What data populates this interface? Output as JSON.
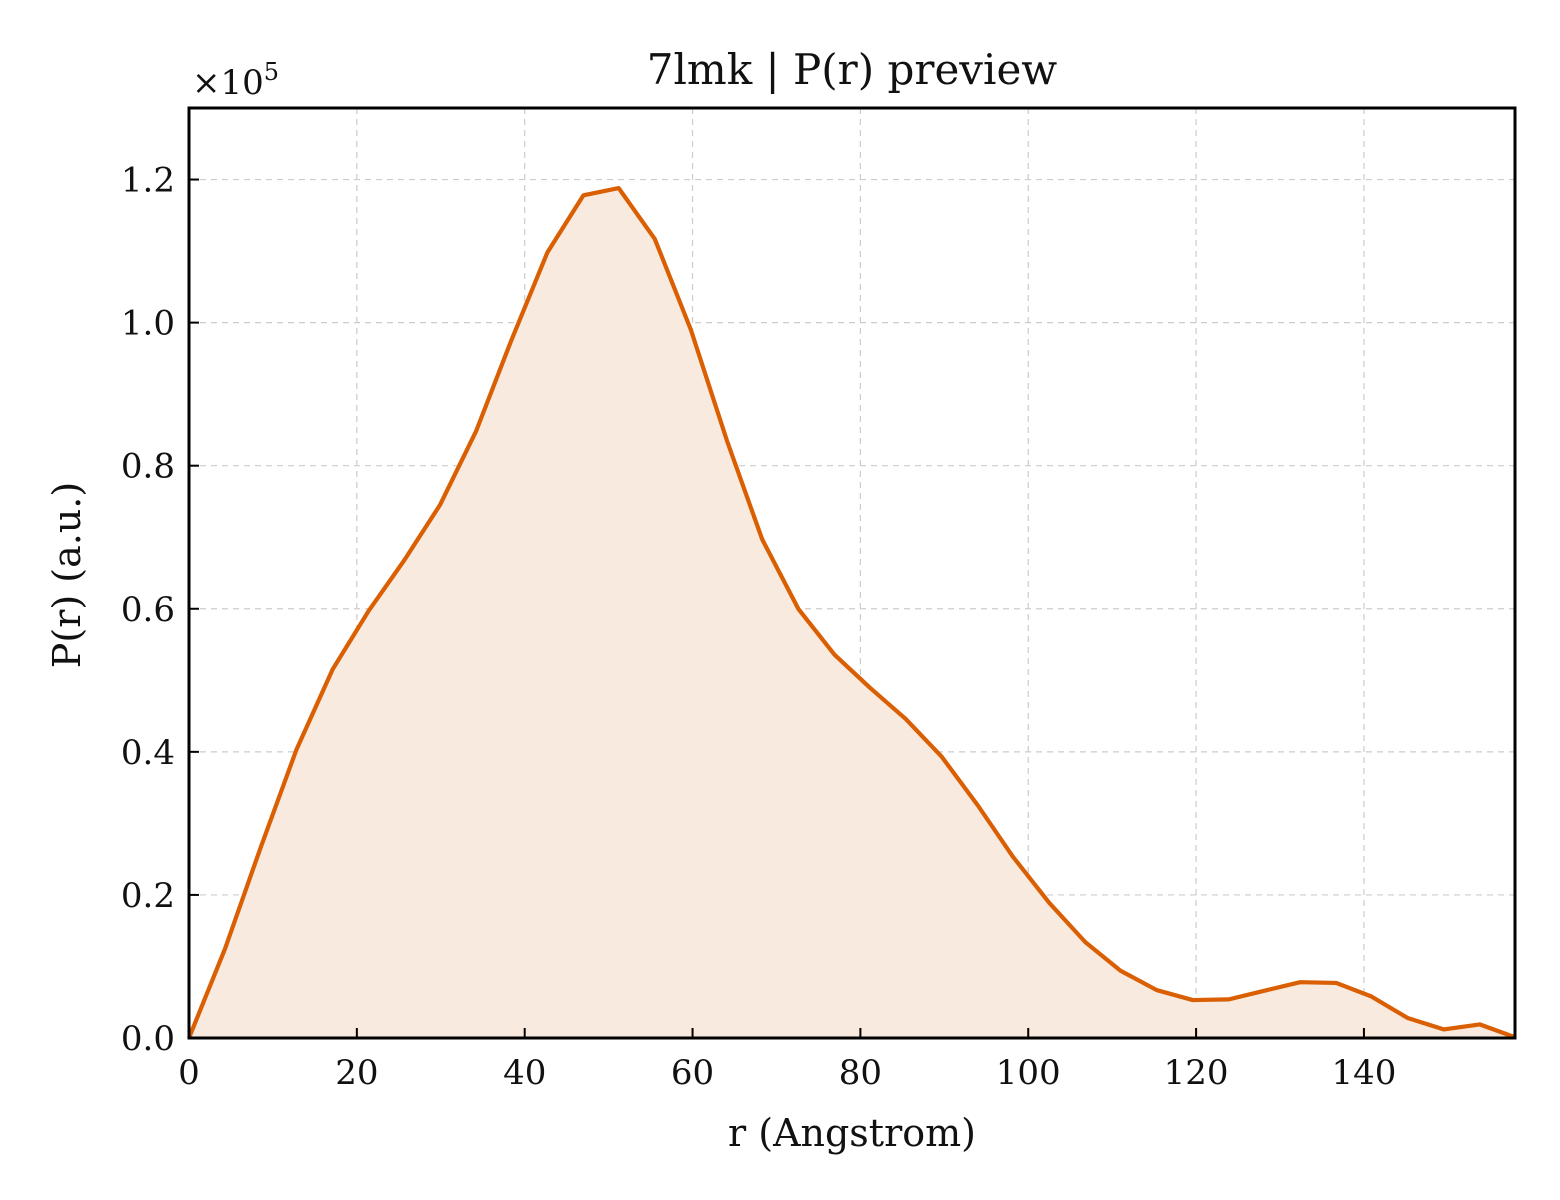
{
  "chart_data": {
    "type": "area",
    "title": "7lmk | P(r) preview",
    "xlabel": "r (Angstrom)",
    "ylabel": "P(r) (a.u.)",
    "y_multiplier_label": "×10",
    "y_multiplier_exponent": "5",
    "xlim": [
      0,
      158
    ],
    "ylim": [
      0,
      1.3
    ],
    "x_ticks": [
      0,
      20,
      40,
      60,
      80,
      100,
      120,
      140
    ],
    "x_tick_labels": [
      "0",
      "20",
      "40",
      "60",
      "80",
      "100",
      "120",
      "140"
    ],
    "y_ticks": [
      0.0,
      0.2,
      0.4,
      0.6,
      0.8,
      1.0,
      1.2
    ],
    "y_tick_labels": [
      "0.0",
      "0.2",
      "0.4",
      "0.6",
      "0.8",
      "1.0",
      "1.2"
    ],
    "grid": true,
    "colors": {
      "line": "#d95f02",
      "fill": "#f9eadf"
    },
    "series": [
      {
        "x": [
          0,
          4.3,
          8.5,
          12.8,
          17.1,
          21.4,
          25.6,
          29.9,
          34.2,
          38.4,
          42.7,
          47.0,
          51.2,
          55.5,
          59.8,
          64.1,
          68.3,
          72.6,
          76.9,
          81.1,
          85.4,
          89.7,
          94.0,
          98.2,
          102.5,
          106.8,
          111.0,
          115.3,
          119.6,
          123.9,
          128.1,
          132.4,
          136.7,
          140.9,
          145.2,
          149.5,
          153.8,
          158.0
        ],
        "values": [
          0.0,
          0.125,
          0.265,
          0.403,
          0.515,
          0.597,
          0.667,
          0.745,
          0.848,
          0.975,
          1.098,
          1.178,
          1.188,
          1.117,
          0.99,
          0.835,
          0.697,
          0.6,
          0.536,
          0.49,
          0.446,
          0.393,
          0.325,
          0.253,
          0.189,
          0.134,
          0.094,
          0.067,
          0.053,
          0.054,
          0.066,
          0.078,
          0.077,
          0.058,
          0.028,
          0.012,
          0.019,
          0.001
        ]
      }
    ]
  }
}
